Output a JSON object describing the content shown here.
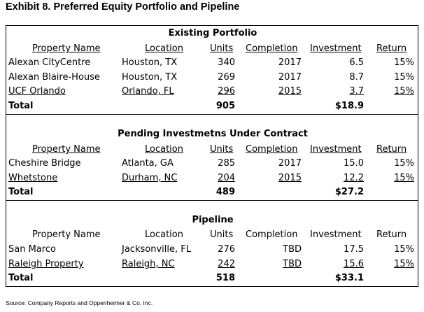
{
  "title": "Exhibit 8. Preferred Equity Portfolio and Pipeline",
  "headers": {
    "property": "Property Name",
    "location": "Location",
    "units": "Units",
    "completion": "Completion",
    "investment": "Investment",
    "return": "Return"
  },
  "sections": [
    {
      "title": "Existing Portfolio",
      "rows": [
        {
          "property": "Alexan CityCentre",
          "location": "Houston, TX",
          "units": "340",
          "completion": "2017",
          "investment": "6.5",
          "return": "15%"
        },
        {
          "property": "Alexan Blaire-House",
          "location": "Houston, TX",
          "units": "269",
          "completion": "2017",
          "investment": "8.7",
          "return": "15%"
        },
        {
          "property": "UCF Orlando",
          "location": "Orlando, FL",
          "units": "296",
          "completion": "2015",
          "investment": "3.7",
          "return": "15%"
        }
      ],
      "total": {
        "label": "Total",
        "units": "905",
        "investment": "$18.9"
      }
    },
    {
      "title": "Pending Investmetns Under Contract",
      "rows": [
        {
          "property": "Cheshire Bridge",
          "location": "Atlanta, GA",
          "units": "285",
          "completion": "2017",
          "investment": "15.0",
          "return": "15%"
        },
        {
          "property": "Whetstone",
          "location": "Durham, NC",
          "units": "204",
          "completion": "2015",
          "investment": "12.2",
          "return": "15%"
        }
      ],
      "total": {
        "label": "Total",
        "units": "489",
        "investment": "$27.2"
      }
    },
    {
      "title": "Pipeline",
      "rows": [
        {
          "property": "San Marco",
          "location": "Jacksonville, FL",
          "units": "276",
          "completion": "TBD",
          "investment": "17.5",
          "return": "15%"
        },
        {
          "property": "Raleigh Property",
          "location": "Raleigh, NC",
          "units": "242",
          "completion": "TBD",
          "investment": "15.6",
          "return": "15%"
        }
      ],
      "total": {
        "label": "Total",
        "units": "518",
        "investment": "$33.1"
      }
    }
  ],
  "source": "Source:  Company Reports and Oppenheimer & Co. Inc."
}
